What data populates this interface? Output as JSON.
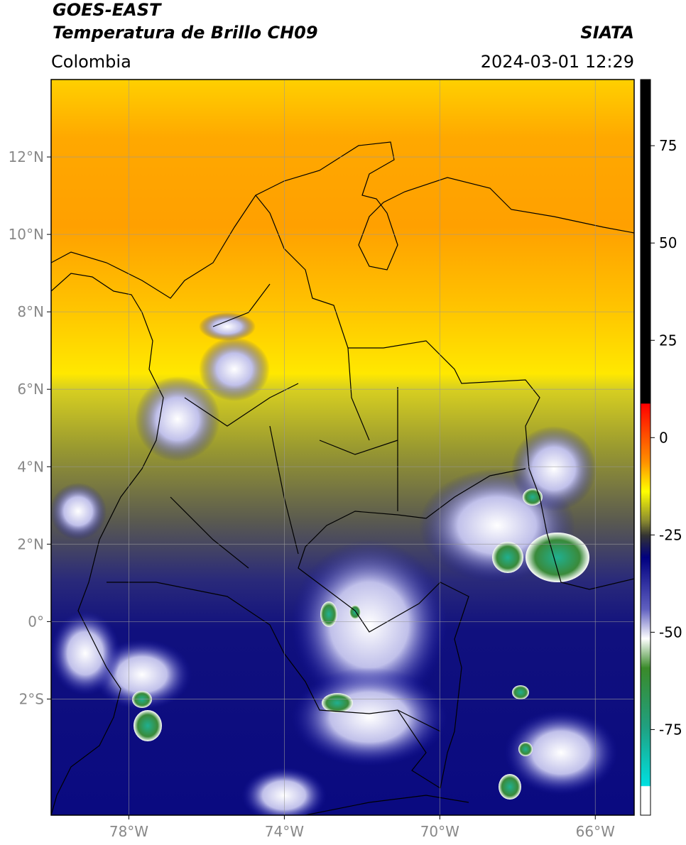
{
  "header": {
    "title_line1": "GOES-EAST",
    "title_line2": "Temperatura de Brillo CH09",
    "source": "SIATA",
    "region": "Colombia",
    "datetime": "2024-03-01 12:29"
  },
  "map": {
    "lon_range": [
      -80,
      -65
    ],
    "lat_range": [
      -5,
      14
    ],
    "lat_ticks": [
      {
        "value": 12,
        "label": "12°N"
      },
      {
        "value": 10,
        "label": "10°N"
      },
      {
        "value": 8,
        "label": "8°N"
      },
      {
        "value": 6,
        "label": "6°N"
      },
      {
        "value": 4,
        "label": "4°N"
      },
      {
        "value": 2,
        "label": "2°N"
      },
      {
        "value": 0,
        "label": "0°"
      },
      {
        "value": -2,
        "label": "2°S"
      }
    ],
    "lon_ticks": [
      {
        "value": -78,
        "label": "78°W"
      },
      {
        "value": -74,
        "label": "74°W"
      },
      {
        "value": -70,
        "label": "70°W"
      },
      {
        "value": -66,
        "label": "66°W"
      }
    ]
  },
  "colorbar": {
    "range": [
      -97,
      92
    ],
    "ticks": [
      75,
      50,
      25,
      0,
      -25,
      -50,
      -75
    ]
  }
}
